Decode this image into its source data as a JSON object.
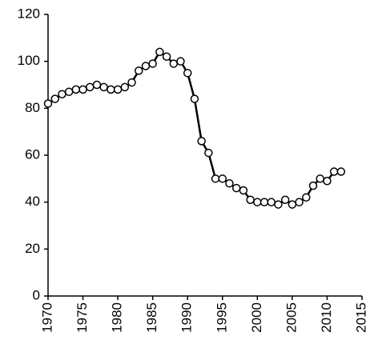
{
  "chart_data": {
    "type": "line",
    "x": [
      1970,
      1971,
      1972,
      1973,
      1974,
      1975,
      1976,
      1977,
      1978,
      1979,
      1980,
      1981,
      1982,
      1983,
      1984,
      1985,
      1986,
      1987,
      1988,
      1989,
      1990,
      1991,
      1992,
      1993,
      1994,
      1995,
      1996,
      1997,
      1998,
      1999,
      2000,
      2001,
      2002,
      2003,
      2004,
      2005,
      2006,
      2007,
      2008,
      2009,
      2010,
      2011,
      2012
    ],
    "values": [
      82,
      84,
      86,
      87,
      88,
      88,
      89,
      90,
      89,
      88,
      88,
      89,
      91,
      96,
      98,
      99,
      104,
      102,
      99,
      100,
      95,
      84,
      66,
      61,
      50,
      50,
      48,
      46,
      45,
      41,
      40,
      40,
      40,
      39,
      41,
      39,
      40,
      42,
      47,
      50,
      49,
      53,
      53
    ],
    "color": "#000000",
    "xlim": [
      1970,
      2015
    ],
    "xticks": [
      1970,
      1975,
      1980,
      1985,
      1990,
      1995,
      2000,
      2005,
      2010,
      2015
    ],
    "ylim": [
      0,
      120
    ],
    "yticks": [
      0,
      20,
      40,
      60,
      80,
      100,
      120
    ]
  }
}
